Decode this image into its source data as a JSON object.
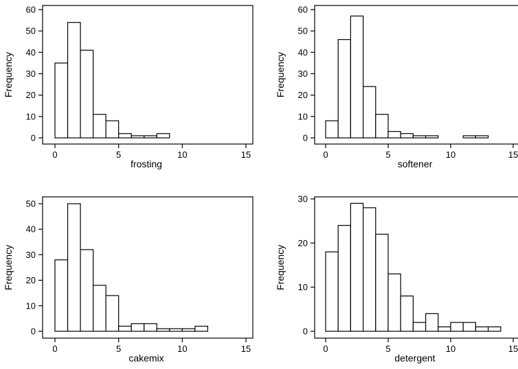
{
  "chart_data": [
    {
      "type": "bar",
      "xlabel": "frosting",
      "ylabel": "Frequency",
      "bin_width": 1,
      "x": [
        0,
        1,
        2,
        3,
        4,
        5,
        6,
        7,
        8,
        9,
        10,
        11,
        12,
        13,
        14
      ],
      "values": [
        35,
        54,
        41,
        11,
        8,
        2,
        1,
        1,
        2,
        0,
        0,
        0,
        0,
        0,
        0
      ],
      "xlim": [
        0,
        15
      ],
      "ylim": [
        0,
        60
      ],
      "xticks": [
        0,
        5,
        10,
        15
      ],
      "yticks": [
        0,
        10,
        20,
        30,
        40,
        50,
        60
      ],
      "grid": false
    },
    {
      "type": "bar",
      "xlabel": "softener",
      "ylabel": "Frequency",
      "bin_width": 1,
      "x": [
        0,
        1,
        2,
        3,
        4,
        5,
        6,
        7,
        8,
        9,
        10,
        11,
        12,
        13,
        14
      ],
      "values": [
        8,
        46,
        57,
        24,
        11,
        3,
        2,
        1,
        1,
        0,
        0,
        1,
        1,
        0,
        0
      ],
      "xlim": [
        0,
        15
      ],
      "ylim": [
        0,
        60
      ],
      "xticks": [
        0,
        5,
        10,
        15
      ],
      "yticks": [
        0,
        10,
        20,
        30,
        40,
        50,
        60
      ],
      "grid": false
    },
    {
      "type": "bar",
      "xlabel": "cakemix",
      "ylabel": "Frequency",
      "bin_width": 1,
      "x": [
        0,
        1,
        2,
        3,
        4,
        5,
        6,
        7,
        8,
        9,
        10,
        11,
        12,
        13,
        14
      ],
      "values": [
        28,
        50,
        32,
        18,
        14,
        2,
        3,
        3,
        1,
        1,
        1,
        2,
        0,
        0,
        0
      ],
      "xlim": [
        0,
        15
      ],
      "ylim": [
        0,
        50
      ],
      "xticks": [
        0,
        5,
        10,
        15
      ],
      "yticks": [
        0,
        10,
        20,
        30,
        40,
        50
      ],
      "grid": false
    },
    {
      "type": "bar",
      "xlabel": "detergent",
      "ylabel": "Frequency",
      "bin_width": 1,
      "x": [
        0,
        1,
        2,
        3,
        4,
        5,
        6,
        7,
        8,
        9,
        10,
        11,
        12,
        13,
        14
      ],
      "values": [
        18,
        24,
        29,
        28,
        22,
        13,
        8,
        2,
        4,
        1,
        2,
        2,
        1,
        1,
        0
      ],
      "xlim": [
        0,
        15
      ],
      "ylim": [
        0,
        30
      ],
      "xticks": [
        0,
        5,
        10,
        15
      ],
      "yticks": [
        0,
        10,
        20,
        30
      ],
      "grid": false
    }
  ]
}
